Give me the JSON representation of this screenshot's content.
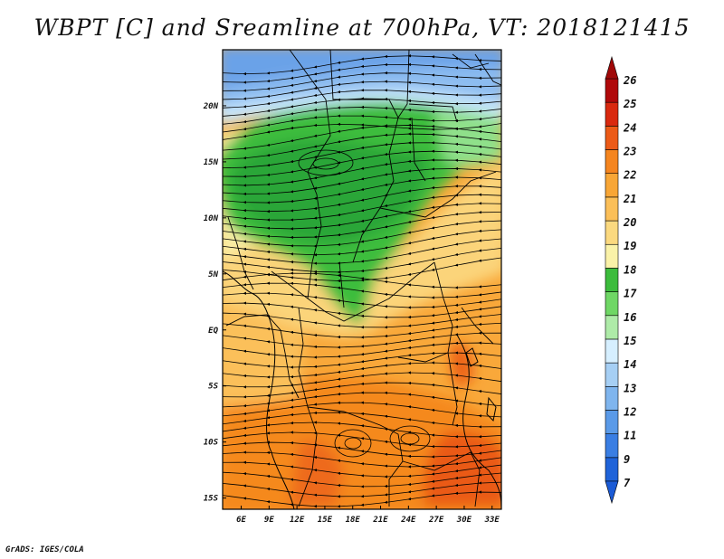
{
  "title": "WBPT [C] and Sreamline at 700hPa, VT: 2018121415",
  "credit": "GrADS: IGES/COLA",
  "map": {
    "lon_range": [
      4,
      34
    ],
    "lat_range": [
      -16,
      25
    ],
    "lon_ticks": [
      {
        "value": 6,
        "label": "6E"
      },
      {
        "value": 9,
        "label": "9E"
      },
      {
        "value": 12,
        "label": "12E"
      },
      {
        "value": 15,
        "label": "15E"
      },
      {
        "value": 18,
        "label": "18E"
      },
      {
        "value": 21,
        "label": "21E"
      },
      {
        "value": 24,
        "label": "24E"
      },
      {
        "value": 27,
        "label": "27E"
      },
      {
        "value": 30,
        "label": "30E"
      },
      {
        "value": 33,
        "label": "33E"
      }
    ],
    "lat_ticks": [
      {
        "value": 20,
        "label": "20N"
      },
      {
        "value": 15,
        "label": "15N"
      },
      {
        "value": 10,
        "label": "10N"
      },
      {
        "value": 5,
        "label": "5N"
      },
      {
        "value": 0,
        "label": "EQ"
      },
      {
        "value": -5,
        "label": "5S"
      },
      {
        "value": -10,
        "label": "10S"
      },
      {
        "value": -15,
        "label": "15S"
      }
    ]
  },
  "colorbar": {
    "labels": [
      "7",
      "9",
      "11",
      "12",
      "13",
      "14",
      "15",
      "16",
      "17",
      "18",
      "19",
      "20",
      "21",
      "22",
      "23",
      "24",
      "25",
      "26"
    ],
    "colors": [
      "#1f63d9",
      "#3a7ee3",
      "#5a9ae8",
      "#7fb5ee",
      "#a6cff4",
      "#d6efff",
      "#aeeba8",
      "#6fd765",
      "#3cbc3c",
      "#faf2a8",
      "#fbd97f",
      "#fbbf58",
      "#f8a636",
      "#f5851f",
      "#ec5a17",
      "#d9290f",
      "#b0090a"
    ]
  }
}
